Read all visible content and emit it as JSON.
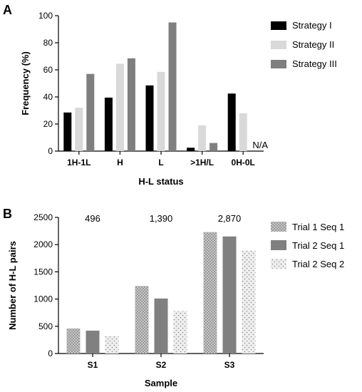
{
  "chart_data": [
    {
      "panel": "A",
      "type": "bar",
      "xlabel": "H-L status",
      "ylabel": "Frequency (%)",
      "ylim": [
        0,
        100
      ],
      "yticks": [
        "0",
        "20",
        "40",
        "60",
        "80",
        "100"
      ],
      "categories": [
        "1H-1L",
        "H",
        "L",
        ">1H/L",
        "0H-0L"
      ],
      "series": [
        {
          "name": "Strategy I",
          "color": "#000000",
          "values": [
            28.5,
            39.5,
            48.5,
            2.5,
            42.5
          ]
        },
        {
          "name": "Strategy II",
          "color": "#d9d9d9",
          "values": [
            32.0,
            64.5,
            58.5,
            19.0,
            28.0
          ]
        },
        {
          "name": "Strategy III",
          "color": "#7f7f7f",
          "values": [
            57.0,
            68.5,
            95.0,
            6.0,
            null
          ]
        }
      ],
      "annotations": [
        {
          "text": "N/A",
          "category": "0H-0L",
          "series": "Strategy III"
        }
      ],
      "legend": "right"
    },
    {
      "panel": "B",
      "type": "bar",
      "xlabel": "Sample",
      "ylabel": "Number of H-L pairs",
      "ylim": [
        0,
        2500
      ],
      "yticks": [
        "0",
        "500",
        "1000",
        "1500",
        "2000",
        "2500"
      ],
      "categories": [
        "S1",
        "S2",
        "S3"
      ],
      "series": [
        {
          "name": "Trial 1 Seq 1",
          "pattern": "dense-dots",
          "values": [
            460,
            1240,
            2230
          ]
        },
        {
          "name": "Trial 2 Seq 1",
          "color": "#808080",
          "values": [
            420,
            1010,
            2150
          ]
        },
        {
          "name": "Trial 2 Seq 2",
          "pattern": "sparse-dots",
          "values": [
            320,
            780,
            1890
          ]
        }
      ],
      "annotations": [
        {
          "text": "496",
          "category": "S1"
        },
        {
          "text": "1,390",
          "category": "S2"
        },
        {
          "text": "2,870",
          "category": "S3"
        }
      ],
      "legend": "right"
    }
  ]
}
